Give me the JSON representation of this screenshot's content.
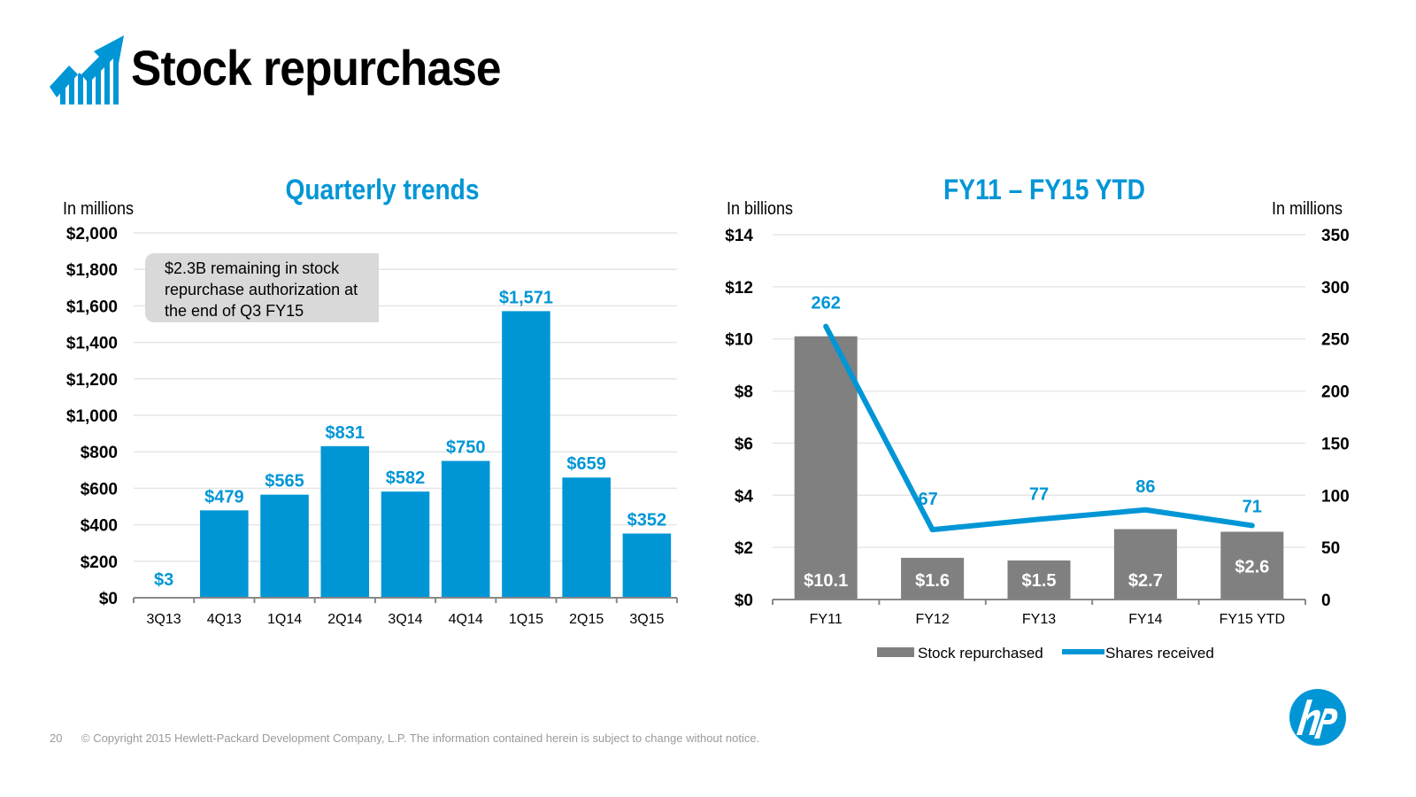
{
  "header": {
    "title": "Stock repurchase",
    "logo_icon": "rising-bar-chart-arrow-icon"
  },
  "colors": {
    "accent": "#0096D6",
    "bar_gray": "#808080",
    "gridline": "#E6E6E6",
    "callout_bg": "#D9D9D9",
    "footer_text": "#9A9A9A"
  },
  "callout": {
    "lines": [
      "$2.3B remaining in stock",
      "repurchase authorization at",
      "the end of Q3 FY15"
    ]
  },
  "footer": {
    "page_number": "20",
    "copyright": "© Copyright 2015 Hewlett-Packard Development Company, L.P.  The information contained herein is subject to change without notice."
  },
  "brand_logo": "hp-logo",
  "chart_data": [
    {
      "type": "bar",
      "title": "Quarterly trends",
      "ylabel": "In millions",
      "xlabel": "",
      "categories": [
        "3Q13",
        "4Q13",
        "1Q14",
        "2Q14",
        "3Q14",
        "4Q14",
        "1Q15",
        "2Q15",
        "3Q15"
      ],
      "values": [
        3,
        479,
        565,
        831,
        582,
        750,
        1571,
        659,
        352
      ],
      "data_labels": [
        "$3",
        "$479",
        "$565",
        "$831",
        "$582",
        "$750",
        "$1,571",
        "$659",
        "$352"
      ],
      "ylim": [
        0,
        2000
      ],
      "yticks": [
        0,
        200,
        400,
        600,
        800,
        1000,
        1200,
        1400,
        1600,
        1800,
        2000
      ],
      "ytick_labels": [
        "$0",
        "$200",
        "$400",
        "$600",
        "$800",
        "$1,000",
        "$1,200",
        "$1,400",
        "$1,600",
        "$1,800",
        "$2,000"
      ],
      "grid": true,
      "legend": "none"
    },
    {
      "type": "bar+line",
      "title": "FY11 – FY15 YTD",
      "ylabel": "In billions",
      "y2label": "In millions",
      "categories": [
        "FY11",
        "FY12",
        "FY13",
        "FY14",
        "FY15 YTD"
      ],
      "series": [
        {
          "name": "Stock repurchased",
          "type": "bar",
          "axis": "left",
          "values": [
            10.1,
            1.6,
            1.5,
            2.7,
            2.6
          ],
          "data_labels": [
            "$10.1",
            "$1.6",
            "$1.5",
            "$2.7",
            "$2.6"
          ]
        },
        {
          "name": "Shares received",
          "type": "line",
          "axis": "right",
          "values": [
            262,
            67,
            77,
            86,
            71
          ],
          "data_labels": [
            "262",
            "67",
            "77",
            "86",
            "71"
          ]
        }
      ],
      "ylim": [
        0,
        14
      ],
      "yticks": [
        0,
        2,
        4,
        6,
        8,
        10,
        12,
        14
      ],
      "ytick_labels": [
        "$0",
        "$2",
        "$4",
        "$6",
        "$8",
        "$10",
        "$12",
        "$14"
      ],
      "y2lim": [
        0,
        350
      ],
      "y2ticks": [
        0,
        50,
        100,
        150,
        200,
        250,
        300,
        350
      ],
      "y2tick_labels": [
        "0",
        "50",
        "100",
        "150",
        "200",
        "250",
        "300",
        "350"
      ],
      "grid": true,
      "legend": "bottom-center"
    }
  ]
}
